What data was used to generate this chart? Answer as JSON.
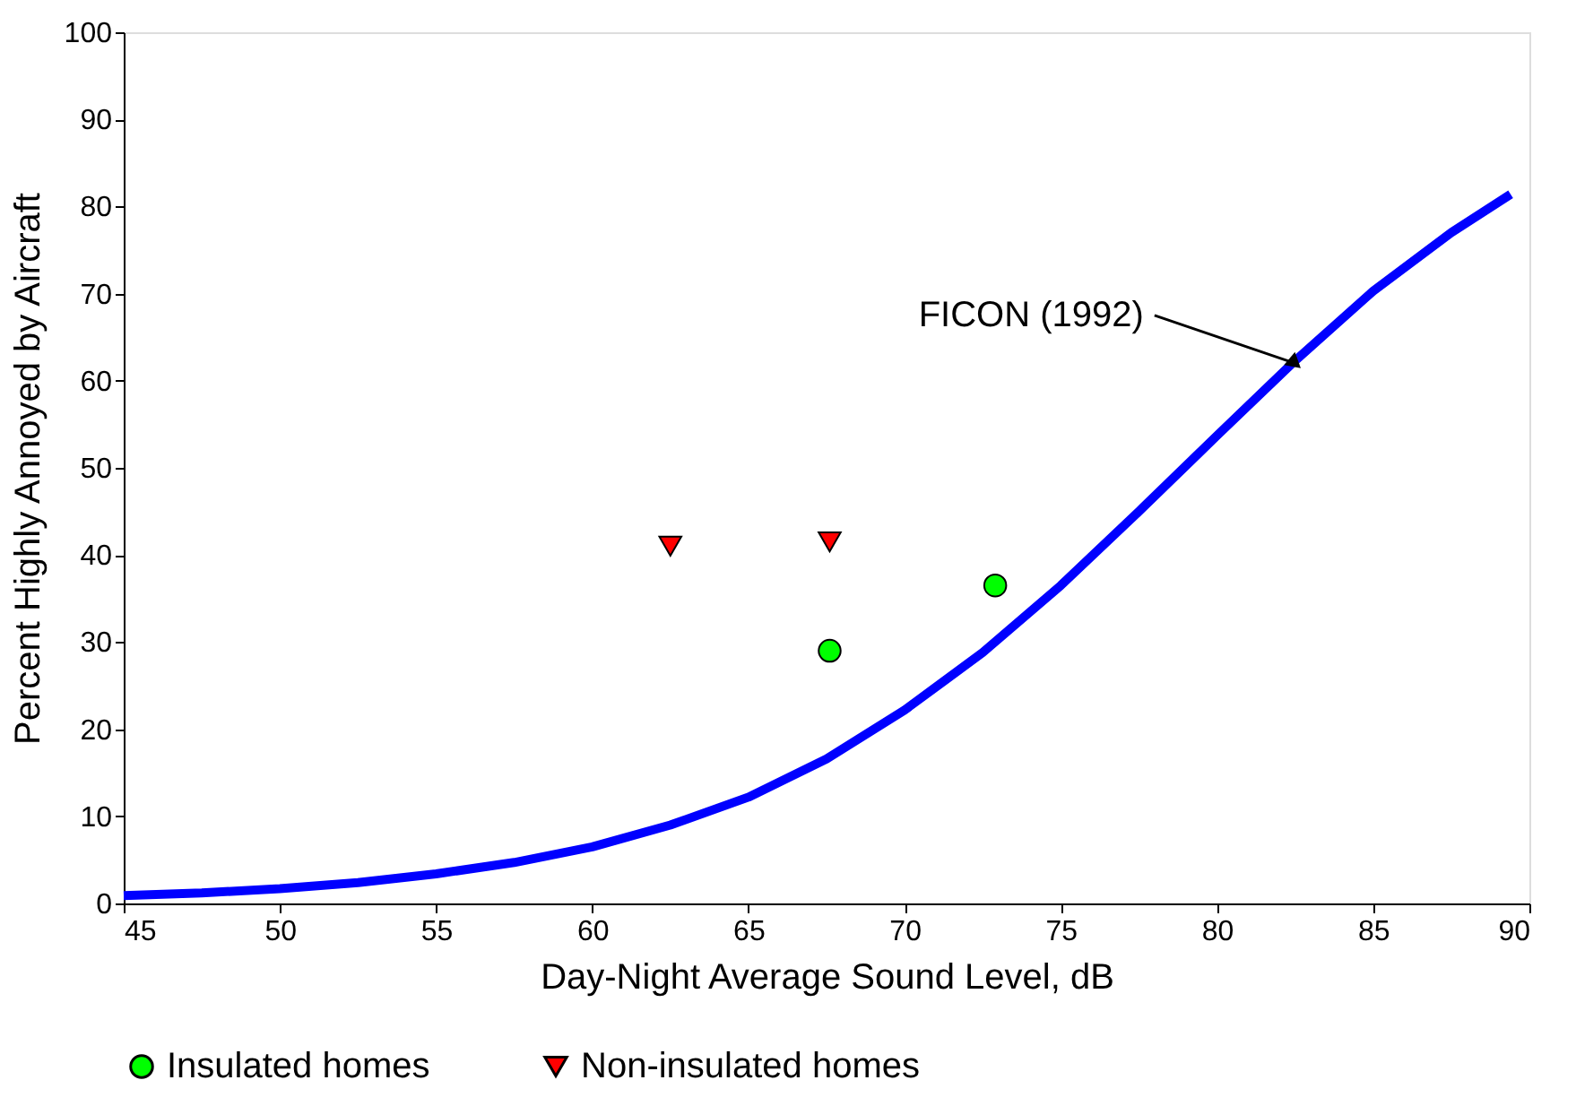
{
  "chart_data": {
    "type": "line",
    "xlabel": "Day-Night Average Sound Level, dB",
    "ylabel": "Percent Highly Annoyed by Aircraft",
    "xlim": [
      45,
      90
    ],
    "xticks": [
      45,
      50,
      55,
      60,
      65,
      70,
      75,
      80,
      85,
      90
    ],
    "ylim": [
      0,
      100
    ],
    "yticks": [
      0,
      10,
      20,
      30,
      40,
      50,
      60,
      70,
      80,
      90,
      100
    ],
    "grid": false,
    "legend": "bottom",
    "annotations": [
      {
        "text": "FICON (1992)",
        "x": 82.5,
        "y": 62
      }
    ],
    "series": [
      {
        "color": "#0000ff",
        "marker": "none",
        "line_style": "solid",
        "x": [
          45,
          47.5,
          50,
          52.5,
          55,
          57.5,
          60,
          62.5,
          65,
          67.5,
          70,
          72.5,
          75,
          77.5,
          80,
          82.5,
          85,
          87.5,
          89.4
        ],
        "values": [
          0.9,
          1.2,
          1.7,
          2.4,
          3.4,
          4.7,
          6.5,
          9.0,
          12.2,
          16.6,
          22.2,
          28.8,
          36.5,
          45,
          53.7,
          62.3,
          70.3,
          77,
          81.4
        ]
      },
      {
        "type": "scatter",
        "name": "Insulated homes",
        "color": "#00ff00",
        "marker": "circle",
        "x": [
          67.6,
          72.9
        ],
        "values": [
          29,
          36.5
        ]
      },
      {
        "type": "scatter",
        "name": "Non-insulated homes",
        "color": "#ff0000",
        "marker": "triangle",
        "x": [
          62.5,
          67.6
        ],
        "values": [
          41,
          41.5
        ]
      }
    ]
  }
}
